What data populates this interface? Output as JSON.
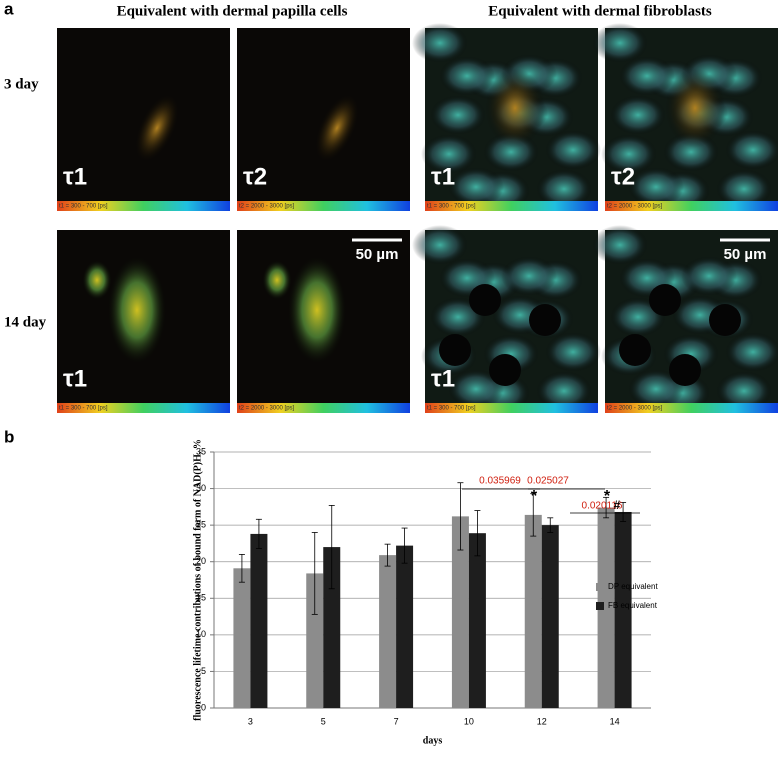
{
  "panel_a": {
    "label": "a",
    "column_titles": [
      "Equivalent with dermal papilla cells",
      "Equivalent with dermal fibroblasts"
    ],
    "row_labels": [
      "3 day",
      "14 day"
    ],
    "images": [
      [
        {
          "tau": "τ1",
          "colorbar": "t1 = 300 - 700 [ps]"
        },
        {
          "tau": "τ2",
          "colorbar": "t2 = 2000 - 3000 [ps]"
        },
        {
          "tau": "τ1",
          "colorbar": "t1 = 300 - 700 [ps]"
        },
        {
          "tau": "τ2",
          "colorbar": "t2 = 2000 - 3000 [ps]"
        }
      ],
      [
        {
          "tau": "τ1",
          "colorbar": "t1 = 300 - 700 [ps]"
        },
        {
          "scale_bar": "50 µm",
          "colorbar": "t2 = 2000 - 3000 [ps]"
        },
        {
          "tau": "τ1",
          "colorbar": "t1 = 300 - 700 [ps]"
        },
        {
          "scale_bar": "50 µm",
          "colorbar": "t2 = 2000 - 3000 [ps]"
        }
      ]
    ]
  },
  "chart_data": {
    "type": "bar",
    "panel_label": "b",
    "y_label": "fluorescence lifetime contributions of bound form of NAD(P)H, %",
    "x_label": "days",
    "categories": [
      "3",
      "5",
      "7",
      "10",
      "12",
      "14"
    ],
    "series": [
      {
        "name": "DP equivalent",
        "color": "#8c8c8c",
        "values": [
          19.1,
          18.4,
          20.9,
          26.2,
          26.4,
          27.4
        ],
        "errors": [
          1.9,
          5.6,
          1.5,
          4.6,
          2.9,
          1.4
        ]
      },
      {
        "name": "FB equivalent",
        "color": "#1e1e1e",
        "values": [
          23.8,
          22.0,
          22.2,
          23.9,
          25.0,
          26.8
        ],
        "errors": [
          2.0,
          5.7,
          2.4,
          3.1,
          1.0,
          1.3
        ]
      }
    ],
    "ylim": [
      0,
      35
    ],
    "yticks": [
      0,
      5,
      10,
      15,
      20,
      25,
      30,
      35
    ],
    "grid": true,
    "legend": "right",
    "annotations": [
      "0.035969",
      "0.025027",
      "0.020116",
      "*",
      "*",
      "#"
    ]
  }
}
